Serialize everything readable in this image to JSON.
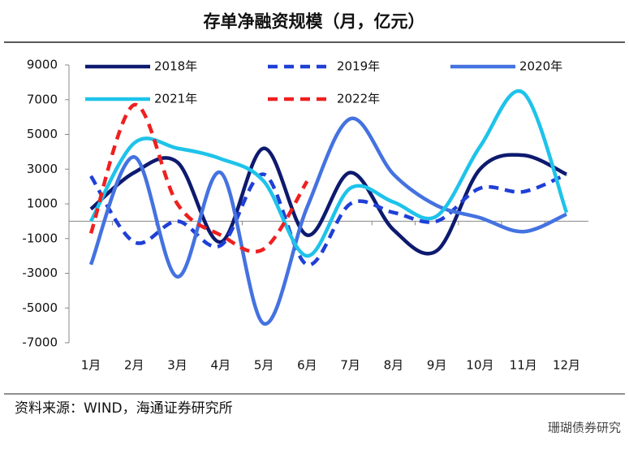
{
  "chart_data": {
    "type": "line",
    "title": "存单净融资规模（月，亿元）",
    "source": "资料来源：WIND，海通证券研究所",
    "watermark": "珊瑚债券研究",
    "categories": [
      "1月",
      "2月",
      "3月",
      "4月",
      "5月",
      "6月",
      "7月",
      "8月",
      "9月",
      "10月",
      "11月",
      "12月"
    ],
    "series": [
      {
        "name": "2018年",
        "color": "#0d1a6e",
        "dash": false,
        "values": [
          700,
          2800,
          3400,
          -1200,
          4200,
          -800,
          2800,
          -500,
          -1700,
          3000,
          3800,
          2700
        ]
      },
      {
        "name": "2019年",
        "color": "#1f3fd6",
        "dash": true,
        "values": [
          2600,
          -1200,
          0,
          -1400,
          2700,
          -2500,
          1000,
          500,
          0,
          1900,
          1700,
          2700
        ]
      },
      {
        "name": "2020年",
        "color": "#4472e0",
        "dash": false,
        "values": [
          -2500,
          3700,
          -3200,
          2800,
          -5900,
          800,
          5900,
          2700,
          900,
          200,
          -600,
          400
        ]
      },
      {
        "name": "2021年",
        "color": "#1ec3ea",
        "dash": false,
        "values": [
          0,
          4500,
          4200,
          3600,
          2300,
          -2000,
          1900,
          1100,
          300,
          4300,
          7400,
          500
        ]
      },
      {
        "name": "2022年",
        "color": "#ee2020",
        "dash": true,
        "values": [
          -700,
          6700,
          1000,
          -800,
          -1600,
          2300,
          null,
          null,
          null,
          null,
          null,
          null
        ]
      }
    ],
    "ylim": [
      -7000,
      9000
    ],
    "yticks": [
      9000,
      7000,
      5000,
      3000,
      1000,
      -1000,
      -3000,
      -5000,
      -7000
    ]
  }
}
